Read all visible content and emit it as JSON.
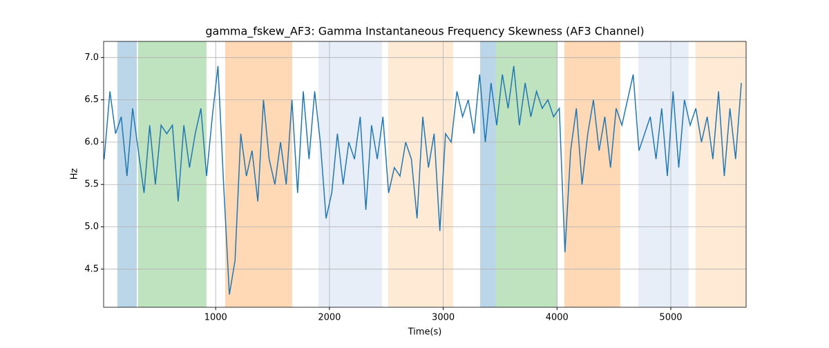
{
  "chart_data": {
    "type": "line",
    "title": "gamma_fskew_AF3: Gamma Instantaneous Frequency Skewness (AF3 Channel)",
    "xlabel": "Time(s)",
    "ylabel": "Hz",
    "x": [
      20,
      70,
      120,
      170,
      220,
      270,
      320,
      370,
      420,
      470,
      520,
      570,
      620,
      670,
      720,
      770,
      820,
      870,
      920,
      970,
      1020,
      1070,
      1120,
      1170,
      1220,
      1270,
      1320,
      1370,
      1420,
      1470,
      1520,
      1570,
      1620,
      1670,
      1720,
      1770,
      1820,
      1870,
      1920,
      1970,
      2020,
      2070,
      2120,
      2170,
      2220,
      2270,
      2320,
      2370,
      2420,
      2470,
      2520,
      2570,
      2620,
      2670,
      2720,
      2770,
      2820,
      2870,
      2920,
      2970,
      3020,
      3070,
      3120,
      3170,
      3220,
      3270,
      3320,
      3370,
      3420,
      3470,
      3520,
      3570,
      3620,
      3670,
      3720,
      3770,
      3820,
      3870,
      3920,
      3970,
      4020,
      4070,
      4120,
      4170,
      4220,
      4270,
      4320,
      4370,
      4420,
      4470,
      4520,
      4570,
      4620,
      4670,
      4720,
      4770,
      4820,
      4870,
      4920,
      4970,
      5020,
      5070,
      5120,
      5170,
      5220,
      5270,
      5320,
      5370,
      5420,
      5470,
      5520,
      5570,
      5620
    ],
    "series": [
      {
        "color": "#1f77b4",
        "values": [
          5.8,
          6.6,
          6.1,
          6.3,
          5.6,
          6.4,
          5.9,
          5.4,
          6.2,
          5.5,
          6.2,
          6.1,
          6.2,
          5.3,
          6.2,
          5.7,
          6.1,
          6.4,
          5.6,
          6.3,
          6.9,
          5.5,
          4.2,
          4.6,
          6.1,
          5.6,
          5.9,
          5.3,
          6.5,
          5.8,
          5.5,
          6.0,
          5.5,
          6.5,
          5.4,
          6.6,
          5.8,
          6.6,
          6.0,
          5.1,
          5.4,
          6.1,
          5.5,
          6.0,
          5.8,
          6.3,
          5.2,
          6.2,
          5.8,
          6.3,
          5.4,
          5.7,
          5.6,
          6.0,
          5.8,
          5.1,
          6.3,
          5.7,
          6.1,
          4.95,
          6.1,
          6.0,
          6.6,
          6.3,
          6.5,
          6.1,
          6.8,
          6.0,
          6.7,
          6.2,
          6.8,
          6.4,
          6.9,
          6.2,
          6.7,
          6.3,
          6.6,
          6.4,
          6.5,
          6.3,
          6.4,
          4.7,
          5.9,
          6.4,
          5.5,
          6.1,
          6.5,
          5.9,
          6.3,
          5.7,
          6.4,
          6.2,
          6.5,
          6.8,
          5.9,
          6.1,
          6.3,
          5.8,
          6.4,
          5.6,
          6.6,
          5.7,
          6.5,
          6.2,
          6.4,
          6.0,
          6.3,
          5.8,
          6.6,
          5.6,
          6.4,
          5.8,
          6.7
        ]
      }
    ],
    "spans": [
      {
        "x": [
          136,
          306
        ],
        "color": "#1f77b4",
        "alpha": 0.3
      },
      {
        "x": [
          318,
          919
        ],
        "color": "#2ca02c",
        "alpha": 0.3
      },
      {
        "x": [
          1083,
          1672
        ],
        "color": "#ff7f0e",
        "alpha": 0.3
      },
      {
        "x": [
          1903,
          2461
        ],
        "color": "#aec7e8",
        "alpha": 0.3
      },
      {
        "x": [
          2516,
          3087
        ],
        "color": "#ffbb78",
        "alpha": 0.3
      },
      {
        "x": [
          3324,
          3463
        ],
        "color": "#1f77b4",
        "alpha": 0.3
      },
      {
        "x": [
          3463,
          4004
        ],
        "color": "#2ca02c",
        "alpha": 0.3
      },
      {
        "x": [
          4064,
          4556
        ],
        "color": "#ff7f0e",
        "alpha": 0.3
      },
      {
        "x": [
          4714,
          5157
        ],
        "color": "#aec7e8",
        "alpha": 0.3
      },
      {
        "x": [
          5218,
          5662
        ],
        "color": "#ffbb78",
        "alpha": 0.3
      }
    ],
    "xlim": [
      15,
      5662
    ],
    "ylim": [
      4.05,
      7.19
    ],
    "xticks": [
      1000,
      2000,
      3000,
      4000,
      5000
    ],
    "yticks": [
      4.5,
      {
        "value": 5.0,
        "label": "5.0"
      },
      5.5,
      {
        "value": 6.0,
        "label": "6.0"
      },
      6.5,
      {
        "value": 7.0,
        "label": "7.0"
      }
    ],
    "grid": true
  }
}
